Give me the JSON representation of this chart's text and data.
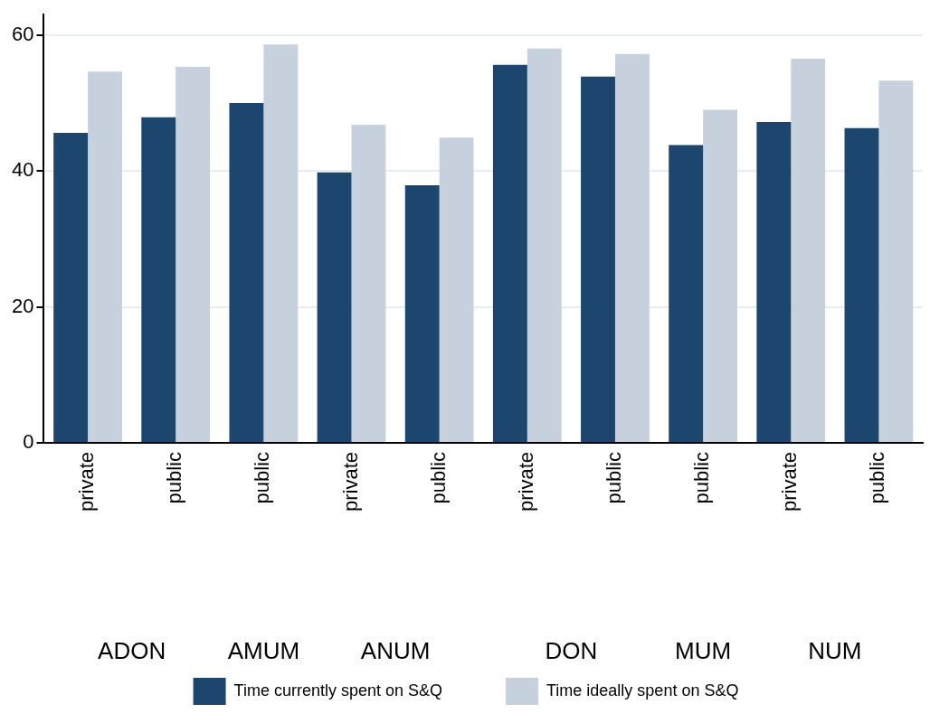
{
  "chart_data": {
    "type": "bar",
    "categories": [
      "private",
      "public",
      "public",
      "private",
      "public",
      "private",
      "public",
      "public",
      "private",
      "public"
    ],
    "annotations": [
      "ADON",
      "AMUM",
      "ANUM",
      "DON",
      "MUM",
      "NUM"
    ],
    "series": [
      {
        "name": "Time currently spent on S&Q",
        "color": "#1c466e",
        "values": [
          45.6,
          47.9,
          50.0,
          39.8,
          37.9,
          55.6,
          53.9,
          43.8,
          47.2,
          46.3
        ]
      },
      {
        "name": "Time ideally spent on S&Q",
        "color": "#c6d1dd",
        "values": [
          54.6,
          55.3,
          58.6,
          46.8,
          44.9,
          58.0,
          57.2,
          49.0,
          56.5,
          53.3
        ]
      }
    ],
    "ylim": [
      0,
      63
    ],
    "yticks": [
      0,
      20,
      40,
      60
    ],
    "grid": "y",
    "legend": "bottom"
  }
}
